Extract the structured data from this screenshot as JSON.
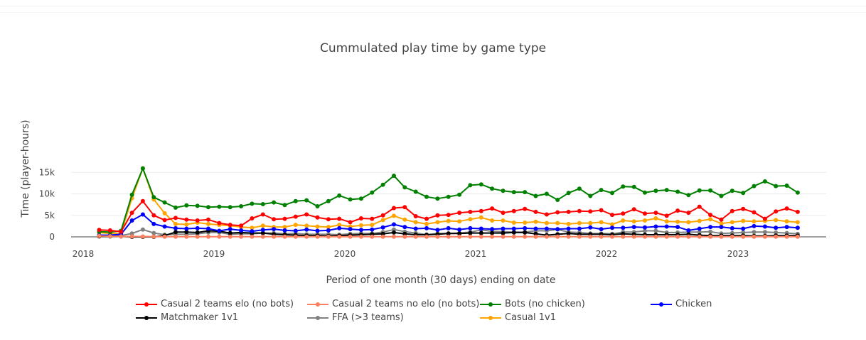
{
  "chart_data": {
    "type": "line",
    "title": "Cummulated play time by game type",
    "xlabel": "Period of one month (30 days) ending on date",
    "ylabel": "Time (player-hours)",
    "x_start": "2018-02-15",
    "x_tick_labels": [
      "2018",
      "2019",
      "2020",
      "2021",
      "2022",
      "2023"
    ],
    "y_ticks": [
      0,
      5000,
      10000,
      15000
    ],
    "y_tick_labels": [
      "0",
      "5k",
      "10k",
      "15k"
    ],
    "ylim": [
      0,
      17000
    ],
    "grid": true,
    "legend_position": "bottom",
    "series": [
      {
        "name": "Casual 2 teams elo (no bots)",
        "color": "#ff0000",
        "values": [
          1600,
          1500,
          1200,
          5600,
          8300,
          5000,
          3900,
          4400,
          4000,
          3800,
          4000,
          3200,
          2800,
          2600,
          4300,
          5200,
          4100,
          4200,
          4700,
          5200,
          4500,
          4100,
          4200,
          3400,
          4300,
          4200,
          5000,
          6700,
          6900,
          4800,
          4200,
          5000,
          5100,
          5600,
          5800,
          6000,
          6600,
          5600,
          6000,
          6500,
          5800,
          5200,
          5700,
          5800,
          6000,
          5900,
          6200,
          5100,
          5400,
          6400,
          5400,
          5600,
          4900,
          6100,
          5600,
          7000,
          5100,
          4000,
          6000,
          6500,
          5700,
          4200,
          5900,
          6600,
          5800
        ]
      },
      {
        "name": "Casual 2 teams no elo (no bots)",
        "color": "#fa8060",
        "values": [
          200,
          150,
          100,
          100,
          80,
          60,
          50,
          50,
          50,
          50,
          50,
          50,
          50,
          50,
          50,
          50,
          50,
          50,
          50,
          50,
          50,
          50,
          50,
          50,
          50,
          50,
          50,
          50,
          50,
          50,
          50,
          50,
          50,
          50,
          50,
          50,
          50,
          50,
          50,
          50,
          50,
          50,
          50,
          50,
          50,
          50,
          50,
          50,
          50,
          50,
          50,
          50,
          50,
          50,
          50,
          50,
          50,
          50,
          50,
          50,
          50,
          50,
          50,
          50,
          50
        ]
      },
      {
        "name": "Bots (no chicken)",
        "color": "#008000",
        "values": [
          1200,
          1100,
          1400,
          9800,
          15900,
          9200,
          8000,
          6800,
          7300,
          7200,
          6900,
          7000,
          6900,
          7100,
          7700,
          7600,
          8000,
          7400,
          8300,
          8500,
          7100,
          8300,
          9600,
          8700,
          8900,
          10300,
          12100,
          14200,
          11500,
          10500,
          9300,
          8900,
          9300,
          9800,
          12000,
          12200,
          11200,
          10700,
          10400,
          10400,
          9500,
          10000,
          8600,
          10200,
          11200,
          9500,
          10900,
          10200,
          11700,
          11600,
          10300,
          10700,
          10900,
          10500,
          9700,
          10800,
          10800,
          9500,
          10700,
          10200,
          11800,
          12900,
          11800,
          11900,
          10300
        ]
      },
      {
        "name": "Chicken",
        "color": "#0000ff",
        "values": [
          400,
          400,
          600,
          3800,
          5200,
          3000,
          2400,
          2000,
          1900,
          2000,
          1900,
          1400,
          1800,
          1500,
          1300,
          1600,
          1800,
          1500,
          1400,
          1700,
          1400,
          1500,
          2000,
          1800,
          1600,
          1700,
          2200,
          2900,
          2300,
          1900,
          2000,
          1600,
          2000,
          1700,
          2000,
          1900,
          1800,
          1900,
          1900,
          2000,
          1900,
          1900,
          1800,
          1900,
          1900,
          2200,
          1800,
          2100,
          2100,
          2300,
          2200,
          2400,
          2400,
          2300,
          1500,
          1900,
          2300,
          2300,
          2000,
          1900,
          2500,
          2400,
          2100,
          2300,
          2100
        ]
      },
      {
        "name": "Matchmaker 1v1",
        "color": "#000000",
        "values": [
          100,
          100,
          100,
          0,
          0,
          0,
          300,
          1100,
          1100,
          1000,
          1400,
          1300,
          900,
          1000,
          900,
          900,
          600,
          500,
          400,
          300,
          300,
          200,
          300,
          400,
          500,
          600,
          700,
          1000,
          700,
          500,
          500,
          600,
          800,
          800,
          900,
          900,
          900,
          900,
          1000,
          1000,
          700,
          400,
          600,
          800,
          600,
          600,
          600,
          500,
          700,
          600,
          500,
          500,
          500,
          500,
          600,
          400,
          300,
          300,
          300,
          300,
          200,
          200,
          300,
          300,
          300
        ]
      },
      {
        "name": "FFA (>3 teams)",
        "color": "#808080",
        "values": [
          300,
          300,
          300,
          800,
          1700,
          900,
          500,
          600,
          600,
          700,
          1000,
          1000,
          600,
          700,
          700,
          900,
          900,
          700,
          800,
          600,
          600,
          600,
          500,
          700,
          800,
          800,
          1100,
          1700,
          1200,
          900,
          500,
          800,
          800,
          900,
          1100,
          1600,
          1300,
          1200,
          1100,
          1100,
          1400,
          1400,
          1700,
          1100,
          1000,
          800,
          800,
          700,
          1100,
          1100,
          1400,
          1400,
          1000,
          1000,
          1100,
          1100,
          1200,
          800,
          900,
          1000,
          1100,
          1100,
          1000,
          900,
          700
        ]
      },
      {
        "name": "Casual 1v1",
        "color": "#ffa500",
        "values": [
          1000,
          800,
          800,
          9000,
          15900,
          8700,
          5500,
          3000,
          2900,
          3300,
          3000,
          2800,
          2600,
          2300,
          2100,
          2600,
          2300,
          2300,
          2800,
          2600,
          2400,
          2300,
          2800,
          2400,
          2700,
          2800,
          3900,
          4900,
          4000,
          3400,
          3000,
          3400,
          3700,
          3600,
          4100,
          4500,
          3800,
          3800,
          3300,
          3300,
          3500,
          3200,
          3200,
          3000,
          3200,
          3200,
          3400,
          2900,
          3800,
          3600,
          3800,
          4300,
          3600,
          3500,
          3400,
          3700,
          4100,
          3100,
          3400,
          3700,
          3600,
          3700,
          3900,
          3600,
          3400
        ]
      }
    ]
  }
}
